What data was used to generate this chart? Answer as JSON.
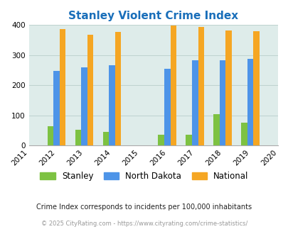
{
  "title": "Stanley Violent Crime Index",
  "years": [
    2011,
    2012,
    2013,
    2014,
    2015,
    2016,
    2017,
    2018,
    2019,
    2020
  ],
  "data_years": [
    2012,
    2013,
    2014,
    2016,
    2017,
    2018,
    2019
  ],
  "stanley": [
    65,
    53,
    45,
    35,
    35,
    105,
    75
  ],
  "north_dakota": [
    247,
    260,
    266,
    254,
    282,
    282,
    287
  ],
  "national": [
    387,
    368,
    378,
    399,
    394,
    382,
    379
  ],
  "stanley_color": "#7dc242",
  "nd_color": "#4d94e8",
  "national_color": "#f5a623",
  "bg_color": "#deecea",
  "title_color": "#1a6fba",
  "ylabel_max": 400,
  "yticks": [
    0,
    100,
    200,
    300,
    400
  ],
  "footnote1": "Crime Index corresponds to incidents per 100,000 inhabitants",
  "footnote2": "© 2025 CityRating.com - https://www.cityrating.com/crime-statistics/",
  "bar_width": 0.22,
  "legend_labels": [
    "Stanley",
    "North Dakota",
    "National"
  ]
}
